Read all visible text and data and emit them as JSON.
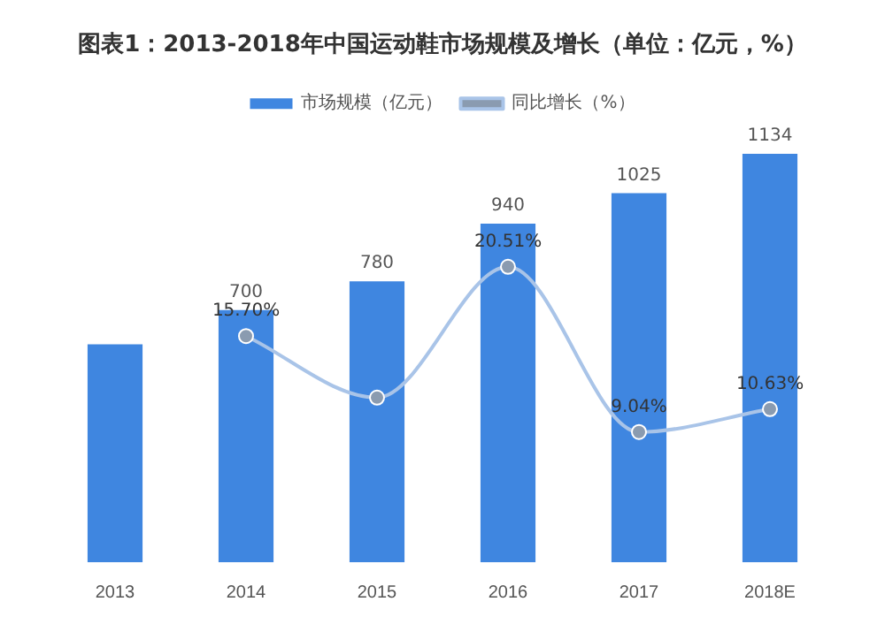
{
  "chart_data": {
    "type": "bar",
    "title": "图表1：2013-2018年中国运动鞋市场规模及增长（单位：亿元，%）",
    "categories": [
      "2013",
      "2014",
      "2015",
      "2016",
      "2017",
      "2018E"
    ],
    "series": [
      {
        "name": "市场规模（亿元）",
        "color": "#3f86e0",
        "values": [
          605,
          700,
          780,
          940,
          1025,
          1134
        ],
        "value_labels": [
          null,
          "700",
          "780",
          "940",
          "1025",
          "1134"
        ]
      },
      {
        "name": "同比增长（%）",
        "type": "line",
        "axis": "y2",
        "color": "#a9c4e8",
        "values": [
          null,
          15.7,
          11.43,
          20.51,
          9.04,
          10.63
        ],
        "value_labels": [
          null,
          "15.70%",
          null,
          "20.51%",
          "9.04%",
          "10.63%"
        ]
      }
    ],
    "tick_labels": "x",
    "legend": "top",
    "grid": false,
    "marker": "circle"
  }
}
